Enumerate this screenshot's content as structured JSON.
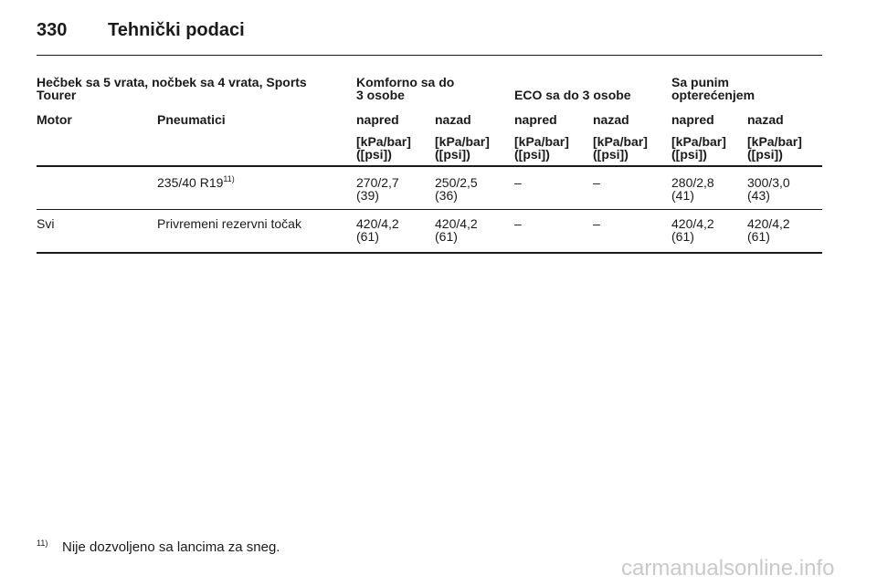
{
  "header": {
    "page_number": "330",
    "title": "Tehnički podaci"
  },
  "table": {
    "group_headers": [
      [
        "Hečbek sa 5 vrata, nočbek sa 4 vrata, Sports",
        "Tourer"
      ],
      [
        "Komforno sa do",
        "3 osobe"
      ],
      [
        "ECO sa do 3 osobe"
      ],
      [
        "Sa punim",
        "opterećenjem"
      ]
    ],
    "columns": [
      "Motor",
      "Pneumatici",
      "napred",
      "nazad",
      "napred",
      "nazad",
      "napred",
      "nazad"
    ],
    "units": [
      [
        "[kPa/bar]",
        "([psi])"
      ],
      [
        "[kPa/bar]",
        "([psi])"
      ],
      [
        "[kPa/bar]",
        "([psi])"
      ],
      [
        "[kPa/bar]",
        "([psi])"
      ],
      [
        "[kPa/bar]",
        "([psi])"
      ],
      [
        "[kPa/bar]",
        "([psi])"
      ]
    ],
    "rows": [
      [
        null,
        {
          "text": "235/40 R19",
          "footnote_ref": "11)"
        },
        [
          "270/2,7",
          "(39)"
        ],
        [
          "250/2,5",
          "(36)"
        ],
        [
          "–"
        ],
        [
          "–"
        ],
        [
          "280/2,8",
          "(41)"
        ],
        [
          "300/3,0",
          "(43)"
        ]
      ],
      [
        [
          "Svi"
        ],
        [
          "Privremeni rezervni točak"
        ],
        [
          "420/4,2",
          "(61)"
        ],
        [
          "420/4,2",
          "(61)"
        ],
        [
          "–"
        ],
        [
          "–"
        ],
        [
          "420/4,2",
          "(61)"
        ],
        [
          "420/4,2",
          "(61)"
        ]
      ]
    ]
  },
  "footnote": {
    "mark": "11)",
    "text": "Nije dozvoljeno sa lancima za sneg."
  },
  "watermark": "carmanualsonline.info"
}
